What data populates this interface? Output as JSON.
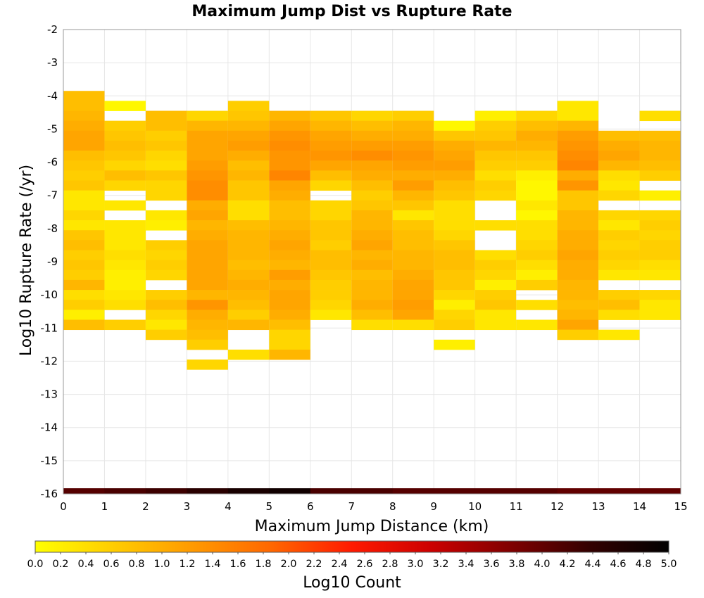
{
  "chart_data": {
    "type": "heatmap",
    "title": "Maximum Jump Dist vs Rupture Rate",
    "xlabel": "Maximum Jump Distance (km)",
    "ylabel": "Log10 Rupture Rate (/yr)",
    "xlim": [
      0,
      15
    ],
    "ylim": [
      -16,
      -2
    ],
    "xticks": [
      "0",
      "1",
      "2",
      "3",
      "4",
      "5",
      "6",
      "7",
      "8",
      "9",
      "10",
      "11",
      "12",
      "13",
      "14",
      "15"
    ],
    "yticks": [
      "-2",
      "-3",
      "-4",
      "-5",
      "-6",
      "-7",
      "-8",
      "-9",
      "-10",
      "-11",
      "-12",
      "-13",
      "-14",
      "-15",
      "-16"
    ],
    "bin_width_x": 1,
    "bin_height_y": 0.3,
    "colorbar": {
      "label": "Log10 Count",
      "range": [
        0,
        5
      ],
      "ticks": [
        "0.0",
        "0.2",
        "0.4",
        "0.6",
        "0.8",
        "1.0",
        "1.2",
        "1.4",
        "1.6",
        "1.8",
        "2.0",
        "2.2",
        "2.4",
        "2.6",
        "2.8",
        "3.0",
        "3.2",
        "3.4",
        "3.6",
        "3.8",
        "4.0",
        "4.2",
        "4.4",
        "4.6",
        "4.8",
        "5.0"
      ],
      "colors": [
        "#ffff00",
        "#ffcc00",
        "#ff9900",
        "#ff6600",
        "#ff1a00",
        "#cc0000",
        "#800000",
        "#330000",
        "#000000"
      ]
    },
    "marginal_row": {
      "description_y": -16,
      "values": [
        4.1,
        4.2,
        4.3,
        4.5,
        4.7,
        4.8,
        4.2,
        4.2,
        4.1,
        4.1,
        4.1,
        4.1,
        4.0,
        4.0,
        4.0
      ]
    },
    "columns": [
      {
        "x0": 0,
        "y_top": -3.85,
        "values": [
          0.8,
          0.8,
          0.9,
          1.0,
          1.1,
          1.1,
          0.8,
          0.7,
          0.6,
          0.7,
          0.3,
          0.3,
          0.5,
          0.3,
          0.7,
          0.8,
          0.6,
          0.7,
          0.6,
          0.9,
          0.4,
          0.6,
          0.2,
          0.8
        ]
      },
      {
        "x0": 1,
        "y_top": -4.15,
        "values": [
          0.1,
          null,
          0.6,
          0.7,
          0.8,
          0.7,
          0.5,
          0.8,
          0.5,
          null,
          0.3,
          null,
          0.3,
          0.3,
          0.3,
          0.4,
          0.3,
          0.2,
          0.2,
          0.3,
          0.4,
          null,
          0.6
        ]
      },
      {
        "x0": 2,
        "y_top": -4.45,
        "values": [
          0.8,
          0.8,
          0.6,
          0.7,
          0.5,
          0.4,
          0.7,
          0.5,
          0.5,
          null,
          0.3,
          0.2,
          null,
          0.6,
          0.5,
          0.6,
          0.5,
          null,
          0.6,
          0.8,
          0.5,
          0.3,
          0.6
        ]
      },
      {
        "x0": 3,
        "y_top": -4.45,
        "values": [
          0.5,
          0.9,
          1.1,
          1.1,
          1.1,
          1.2,
          1.3,
          1.4,
          1.4,
          1.0,
          1.1,
          0.9,
          1.0,
          1.1,
          1.1,
          1.1,
          1.1,
          1.1,
          0.9,
          1.3,
          1.0,
          0.9,
          0.8,
          0.6,
          null,
          0.5
        ]
      },
      {
        "x0": 4,
        "y_top": -4.15,
        "values": [
          0.6,
          0.7,
          0.9,
          1.1,
          1.2,
          1.0,
          0.8,
          0.9,
          0.7,
          0.7,
          0.4,
          0.4,
          0.8,
          0.9,
          0.9,
          0.9,
          0.8,
          0.9,
          1.0,
          0.9,
          0.8,
          0.6,
          0.9,
          null,
          null,
          0.4
        ]
      },
      {
        "x0": 5,
        "y_top": -4.45,
        "values": [
          0.9,
          1.1,
          1.3,
          1.4,
          1.3,
          1.3,
          1.5,
          1.1,
          1.0,
          0.8,
          0.8,
          0.9,
          1.0,
          1.1,
          1.0,
          0.9,
          1.2,
          1.0,
          1.1,
          1.1,
          1.0,
          0.8,
          0.5,
          0.5,
          0.9
        ]
      },
      {
        "x0": 6,
        "y_top": -4.45,
        "values": [
          0.7,
          0.9,
          1.1,
          1.2,
          1.3,
          1.1,
          0.8,
          0.5,
          null,
          0.5,
          0.5,
          0.7,
          0.7,
          0.6,
          0.8,
          0.8,
          0.7,
          0.6,
          0.6,
          0.5,
          0.3
        ]
      },
      {
        "x0": 7,
        "y_top": -4.45,
        "values": [
          0.5,
          0.8,
          1.0,
          1.2,
          1.4,
          1.1,
          1.0,
          0.8,
          0.6,
          0.7,
          0.9,
          0.9,
          1.0,
          1.1,
          0.9,
          1.0,
          0.8,
          0.9,
          0.9,
          1.0,
          0.8,
          0.4
        ]
      },
      {
        "x0": 8,
        "y_top": -4.45,
        "values": [
          0.6,
          0.9,
          1.0,
          1.2,
          1.3,
          1.2,
          1.0,
          1.2,
          0.9,
          0.7,
          0.3,
          0.7,
          0.8,
          0.8,
          0.9,
          0.9,
          1.0,
          1.1,
          1.1,
          1.2,
          1.1,
          0.4
        ]
      },
      {
        "x0": 9,
        "y_top": -4.75,
        "values": [
          0.1,
          0.7,
          1.0,
          1.1,
          1.2,
          1.0,
          0.8,
          0.7,
          0.4,
          0.4,
          0.4,
          0.5,
          0.7,
          0.8,
          0.8,
          0.7,
          0.7,
          0.5,
          0.2,
          0.5,
          0.6,
          null,
          0.2
        ]
      },
      {
        "x0": 10,
        "y_top": -4.45,
        "values": [
          0.2,
          0.6,
          0.7,
          0.9,
          0.7,
          0.6,
          0.4,
          0.6,
          0.5,
          null,
          null,
          0.4,
          null,
          null,
          0.4,
          0.6,
          0.5,
          0.2,
          0.6,
          0.7,
          0.3,
          0.3
        ]
      },
      {
        "x0": 11,
        "y_top": -4.45,
        "values": [
          0.5,
          0.8,
          1.0,
          0.9,
          0.7,
          0.6,
          0.2,
          0.1,
          0.1,
          0.3,
          0.1,
          0.4,
          0.4,
          0.5,
          0.6,
          0.4,
          0.2,
          0.6,
          null,
          0.4,
          null,
          0.3
        ]
      },
      {
        "x0": 12,
        "y_top": -4.15,
        "values": [
          0.3,
          0.3,
          0.9,
          1.2,
          1.3,
          1.4,
          1.5,
          1.0,
          1.3,
          0.7,
          0.7,
          0.9,
          0.9,
          1.0,
          1.0,
          1.1,
          1.0,
          1.0,
          0.9,
          0.9,
          0.8,
          0.9,
          1.1,
          0.6
        ]
      },
      {
        "x0": 13,
        "y_top": -5.05,
        "values": [
          0.8,
          1.0,
          1.1,
          0.9,
          0.4,
          0.3,
          0.5,
          null,
          0.5,
          0.3,
          0.6,
          0.5,
          0.6,
          0.5,
          0.3,
          null,
          0.6,
          0.8,
          0.4,
          null,
          0.3
        ]
      },
      {
        "x0": 14,
        "y_top": -4.45,
        "values": [
          0.4,
          null,
          0.8,
          0.9,
          0.9,
          0.8,
          0.6,
          null,
          0.2,
          null,
          0.5,
          0.6,
          0.5,
          0.6,
          0.6,
          0.4,
          0.3,
          null,
          0.5,
          0.3,
          0.3
        ]
      }
    ]
  }
}
